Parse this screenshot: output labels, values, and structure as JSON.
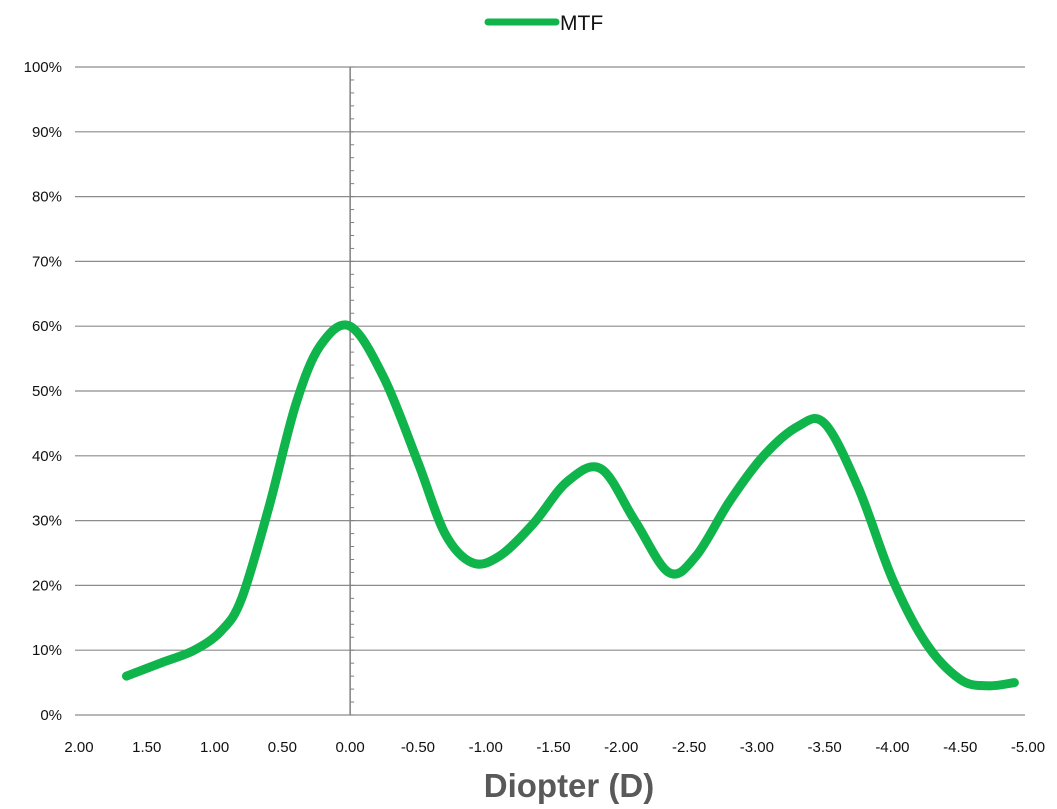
{
  "chart_data": {
    "type": "line",
    "title": "",
    "xlabel": "Diopter (D)",
    "ylabel": "",
    "x_ticks": [
      "2.00",
      "1.50",
      "1.00",
      "0.50",
      "0.00",
      "-0.50",
      "-1.00",
      "-1.50",
      "-2.00",
      "-2.50",
      "-3.00",
      "-3.50",
      "-4.00",
      "-4.50",
      "-5.00"
    ],
    "y_ticks": [
      "0%",
      "10%",
      "20%",
      "30%",
      "40%",
      "50%",
      "60%",
      "70%",
      "80%",
      "90%",
      "100%"
    ],
    "xlim": [
      2.0,
      -5.0
    ],
    "ylim": [
      0,
      100
    ],
    "grid": "horizontal",
    "legend_position": "top-center",
    "reference_line_x": 0.0,
    "series": [
      {
        "name": "MTF",
        "color": "#0fb44a",
        "x": [
          1.65,
          1.4,
          1.15,
          0.95,
          0.8,
          0.6,
          0.4,
          0.22,
          0.0,
          -0.25,
          -0.5,
          -0.7,
          -0.9,
          -1.1,
          -1.35,
          -1.6,
          -1.85,
          -2.1,
          -2.35,
          -2.55,
          -2.8,
          -3.05,
          -3.3,
          -3.5,
          -3.75,
          -4.0,
          -4.25,
          -4.5,
          -4.7,
          -4.9
        ],
        "y": [
          6,
          8,
          10,
          13,
          18,
          32,
          48,
          57,
          60,
          52,
          39,
          28,
          23.5,
          24.5,
          29.5,
          36,
          38,
          30,
          22,
          24.5,
          33,
          40,
          44.5,
          45,
          35,
          21,
          11,
          5.5,
          4.5,
          5
        ]
      }
    ]
  }
}
